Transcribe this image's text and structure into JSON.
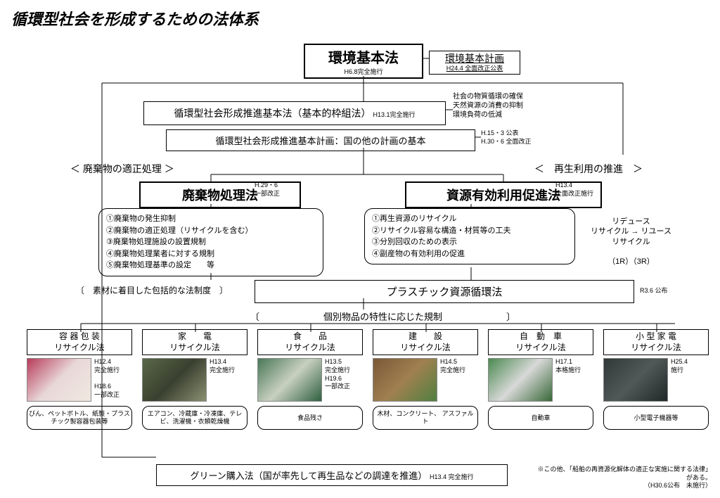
{
  "title": "循環型社会を形成するための法体系",
  "top": {
    "env_law": {
      "title": "環境基本法",
      "sub": "H6.8完全施行"
    },
    "env_plan": {
      "title": "環境基本計画",
      "sub": "H24.4 全面改正公表"
    },
    "recycling_law": "循環型社会形成推進基本法（基本的枠組法）",
    "recycling_law_sub": "H13.1完全施行",
    "recycling_side": "社会の物質循環の確保\n天然資源の消費の抑制\n環境負荷の低減",
    "recycling_plan": "循環型社会形成推進基本計画：国の他の計画の基本",
    "recycling_plan_sub": "H.15・3 公表\nH.30・6 全面改正"
  },
  "left": {
    "header": "＜ 廃棄物の適正処理 ＞",
    "law": "廃棄物処理法",
    "law_sub": "H.29・6\n一部改正",
    "items": "①廃棄物の発生抑制\n②廃棄物の適正処理（リサイクルを含む）\n③廃棄物処理施設の設置規制\n④廃棄物処理業者に対する規制\n⑤廃棄物処理基準の設定　　等"
  },
  "right": {
    "header": "＜　再生利用の推進　＞",
    "law": "資源有効利用促進法",
    "law_sub": "H13.4\n全面改正施行",
    "items": "①再生資源のリサイクル\n②リサイクル容易な構造・材質等の工夫\n③分別回収のための表示\n④副産物の有効利用の促進",
    "side": "リデュース\nリサイクル → リユース\nリサイクル\n\n（1R）（3R）"
  },
  "middle": {
    "material_label": "〔　素材に着目した包括的な法制度　〕",
    "plastic": "プラスチック資源循環法",
    "plastic_sub": "R3.6 公布",
    "item_label": "〔　　　　　　　個別物品の特性に応じた規制　　　　　　　〕"
  },
  "cards": [
    {
      "title": "容 器 包 装\nリサイクル法",
      "sub": "H12.4\n完全施行\n\nH18.6\n一部改正",
      "desc": "びん、ペットボトル、紙製・プラスチック製容器包装等",
      "colors": [
        "#b73c5a",
        "#e8d8d8",
        "#f0e8e0"
      ]
    },
    {
      "title": "家　　電\nリサイクル法",
      "sub": "H13.4\n完全施行",
      "desc": "エアコン、冷蔵庫・冷凍庫、テレビ、洗濯機・衣類乾燥機",
      "colors": [
        "#5a6848",
        "#3a4030",
        "#8a9070"
      ]
    },
    {
      "title": "食　　品\nリサイクル法",
      "sub": "H13.5\n完全施行\nH19.6\n一部改正",
      "desc": "食品残さ",
      "colors": [
        "#4a7858",
        "#c8d0c0",
        "#306040"
      ]
    },
    {
      "title": "建　　設\nリサイクル法",
      "sub": "H14.5\n完全施行",
      "desc": "木材、コンクリート、\nアスファルト",
      "colors": [
        "#7a5838",
        "#a08050",
        "#508040"
      ]
    },
    {
      "title": "自　動　車\nリサイクル法",
      "sub": "H17.1\n本格施行",
      "desc": "自動車",
      "colors": [
        "#4a8a50",
        "#d8d8d8",
        "#386838"
      ]
    },
    {
      "title": "小 型 家 電\nリサイクル法",
      "sub": "H25.4\n施行",
      "desc": "小型電子機器等",
      "colors": [
        "#303838",
        "#505858",
        "#202828"
      ]
    }
  ],
  "green": {
    "text": "グリーン購入法（国が率先して再生品などの調達を推進）",
    "sub": "H13.4 完全施行"
  },
  "footer": "※この他、「船舶の再資源化解体の適正な実施に関する法律」がある。\n（H30.6公布　未施行）",
  "colors": {
    "border": "#000000",
    "bg": "#ffffff"
  }
}
